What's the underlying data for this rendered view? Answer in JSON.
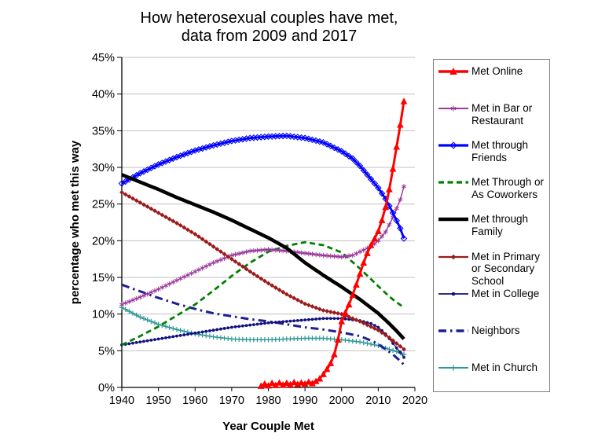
{
  "title": {
    "line1": "How heterosexual couples have met,",
    "line2": "data from 2009 and 2017"
  },
  "chart_data": {
    "type": "line",
    "title": "How heterosexual couples have met, data from 2009 and 2017",
    "xlabel": "Year Couple Met",
    "ylabel": "percentage who met this way",
    "xlim": [
      1940,
      2020
    ],
    "ylim": [
      0,
      45
    ],
    "x_ticks": [
      1940,
      1950,
      1960,
      1970,
      1980,
      1990,
      2000,
      2010,
      2020
    ],
    "y_ticks": [
      0,
      5,
      10,
      15,
      20,
      25,
      30,
      35,
      40,
      45
    ],
    "y_tick_labels": [
      "0%",
      "5%",
      "10%",
      "15%",
      "20%",
      "25%",
      "30%",
      "35%",
      "40%",
      "45%"
    ],
    "grid": "horizontal-only",
    "grid_color": "#C0C0C0",
    "axis_color": "#000000",
    "legend_position": "right",
    "draw_order": [
      "met-in-church",
      "neighbors",
      "met-in-college",
      "met-through-or-as-coworkers",
      "met-in-bar-or-restaurant",
      "met-in-primary-or-secondary-school",
      "met-through-friends",
      "met-through-family",
      "met-online"
    ],
    "series": [
      {
        "key": "met-online",
        "name": "Met Online",
        "color": "#FF0000",
        "line_width": 3,
        "dash": null,
        "marker": "triangle",
        "marker_size": 4.6,
        "points": [
          [
            1978,
            0.2
          ],
          [
            1979,
            0.5
          ],
          [
            1980,
            0.25
          ],
          [
            1981,
            0.6
          ],
          [
            1982,
            0.3
          ],
          [
            1983,
            0.65
          ],
          [
            1984,
            0.35
          ],
          [
            1985,
            0.6
          ],
          [
            1986,
            0.4
          ],
          [
            1987,
            0.7
          ],
          [
            1988,
            0.45
          ],
          [
            1989,
            0.65
          ],
          [
            1990,
            0.5
          ],
          [
            1991,
            0.75
          ],
          [
            1992,
            0.55
          ],
          [
            1993,
            0.85
          ],
          [
            1994,
            1.2
          ],
          [
            1995,
            1.8
          ],
          [
            1996,
            2.5
          ],
          [
            1997,
            3.3
          ],
          [
            1998,
            4.5
          ],
          [
            1999,
            6.5
          ],
          [
            2000,
            9
          ],
          [
            2001,
            10.2
          ],
          [
            2002,
            11.3
          ],
          [
            2003,
            12.6
          ],
          [
            2004,
            14
          ],
          [
            2005,
            15.5
          ],
          [
            2006,
            17
          ],
          [
            2007,
            18.3
          ],
          [
            2008,
            19.4
          ],
          [
            2009,
            20.3
          ],
          [
            2010,
            21.3
          ],
          [
            2011,
            22.8
          ],
          [
            2012,
            24.6
          ],
          [
            2013,
            27
          ],
          [
            2014,
            29.8
          ],
          [
            2015,
            32.8
          ],
          [
            2016,
            35.8
          ],
          [
            2017,
            39
          ]
        ]
      },
      {
        "key": "met-in-bar-or-restaurant",
        "name": "Met in Bar or Restaurant",
        "color": "#9B3A9B",
        "line_width": 1.5,
        "dash": null,
        "marker": "asterisk",
        "marker_size": 3.2,
        "points": [
          [
            1940,
            11.3
          ],
          [
            1945,
            12.3
          ],
          [
            1950,
            13.4
          ],
          [
            1955,
            14.6
          ],
          [
            1960,
            15.8
          ],
          [
            1965,
            17
          ],
          [
            1970,
            18
          ],
          [
            1975,
            18.6
          ],
          [
            1980,
            18.8
          ],
          [
            1985,
            18.6
          ],
          [
            1990,
            18.3
          ],
          [
            1995,
            18
          ],
          [
            2000,
            17.8
          ],
          [
            2003,
            18
          ],
          [
            2005,
            18.5
          ],
          [
            2008,
            19.2
          ],
          [
            2010,
            20
          ],
          [
            2012,
            21.2
          ],
          [
            2014,
            23.2
          ],
          [
            2016,
            25.6
          ],
          [
            2017,
            27.4
          ]
        ]
      },
      {
        "key": "met-through-friends",
        "name": "Met through Friends",
        "color": "#0000FF",
        "line_width": 2.8,
        "dash": null,
        "marker": "diamond-open",
        "marker_size": 3.5,
        "points": [
          [
            1940,
            27.8
          ],
          [
            1945,
            29.2
          ],
          [
            1950,
            30.4
          ],
          [
            1955,
            31.4
          ],
          [
            1960,
            32.3
          ],
          [
            1965,
            33
          ],
          [
            1970,
            33.6
          ],
          [
            1975,
            34
          ],
          [
            1980,
            34.2
          ],
          [
            1985,
            34.3
          ],
          [
            1990,
            34
          ],
          [
            1995,
            33.4
          ],
          [
            2000,
            32.2
          ],
          [
            2003,
            31.2
          ],
          [
            2005,
            30.2
          ],
          [
            2008,
            28.4
          ],
          [
            2010,
            27.2
          ],
          [
            2012,
            25.7
          ],
          [
            2014,
            23.8
          ],
          [
            2016,
            21.7
          ],
          [
            2017,
            20.3
          ]
        ]
      },
      {
        "key": "met-through-or-as-coworkers",
        "name": "Met Through or As Coworkers",
        "color": "#008000",
        "line_width": 2.8,
        "dash": "7,4.5",
        "marker": null,
        "marker_size": 0,
        "points": [
          [
            1940,
            5.8
          ],
          [
            1945,
            7
          ],
          [
            1950,
            8.3
          ],
          [
            1955,
            9.8
          ],
          [
            1960,
            11.3
          ],
          [
            1965,
            13.2
          ],
          [
            1970,
            15.2
          ],
          [
            1975,
            17
          ],
          [
            1980,
            18.5
          ],
          [
            1985,
            19.3
          ],
          [
            1990,
            19.8
          ],
          [
            1995,
            19.4
          ],
          [
            2000,
            18.4
          ],
          [
            2005,
            16.2
          ],
          [
            2010,
            13.8
          ],
          [
            2013,
            12.4
          ],
          [
            2015,
            11.6
          ],
          [
            2017,
            10.9
          ]
        ]
      },
      {
        "key": "met-through-family",
        "name": "Met through Family",
        "color": "#000000",
        "line_width": 4.5,
        "dash": null,
        "marker": null,
        "marker_size": 0,
        "points": [
          [
            1940,
            29
          ],
          [
            1945,
            28
          ],
          [
            1950,
            27
          ],
          [
            1955,
            25.9
          ],
          [
            1960,
            24.9
          ],
          [
            1965,
            23.9
          ],
          [
            1970,
            22.8
          ],
          [
            1975,
            21.6
          ],
          [
            1980,
            20.4
          ],
          [
            1985,
            19
          ],
          [
            1990,
            17
          ],
          [
            1995,
            15.3
          ],
          [
            2000,
            13.7
          ],
          [
            2005,
            12
          ],
          [
            2010,
            10.1
          ],
          [
            2013,
            8.7
          ],
          [
            2015,
            7.7
          ],
          [
            2017,
            6.6
          ]
        ]
      },
      {
        "key": "met-in-primary-or-secondary-school",
        "name": "Met in Primary or Secondary School",
        "color": "#9B1B1B",
        "line_width": 1.8,
        "dash": null,
        "marker": "diamond",
        "marker_size": 2.9,
        "points": [
          [
            1940,
            26.6
          ],
          [
            1945,
            25.2
          ],
          [
            1950,
            23.8
          ],
          [
            1955,
            22.4
          ],
          [
            1960,
            20.9
          ],
          [
            1965,
            19.2
          ],
          [
            1970,
            17.5
          ],
          [
            1975,
            15.8
          ],
          [
            1980,
            14.2
          ],
          [
            1985,
            12.7
          ],
          [
            1990,
            11.4
          ],
          [
            1995,
            10.5
          ],
          [
            2000,
            10
          ],
          [
            2005,
            9
          ],
          [
            2010,
            7.8
          ],
          [
            2013,
            6.8
          ],
          [
            2015,
            6
          ],
          [
            2017,
            5.2
          ]
        ]
      },
      {
        "key": "met-in-college",
        "name": "Met in College",
        "color": "#10107E",
        "line_width": 1.3,
        "dash": null,
        "marker": "dot",
        "marker_size": 1.9,
        "points": [
          [
            1940,
            5.8
          ],
          [
            1945,
            6.2
          ],
          [
            1950,
            6.6
          ],
          [
            1955,
            7
          ],
          [
            1960,
            7.4
          ],
          [
            1965,
            7.8
          ],
          [
            1970,
            8.2
          ],
          [
            1975,
            8.5
          ],
          [
            1980,
            8.8
          ],
          [
            1985,
            9
          ],
          [
            1990,
            9.2
          ],
          [
            1995,
            9.4
          ],
          [
            2000,
            9.4
          ],
          [
            2005,
            9.1
          ],
          [
            2008,
            8.7
          ],
          [
            2010,
            8.2
          ],
          [
            2012,
            7.3
          ],
          [
            2014,
            6
          ],
          [
            2016,
            4.8
          ],
          [
            2017,
            4.1
          ]
        ]
      },
      {
        "key": "neighbors",
        "name": "Neighbors",
        "color": "#1D1D96",
        "line_width": 3,
        "dash": "10,5,2.5,5",
        "marker": null,
        "marker_size": 0,
        "points": [
          [
            1940,
            14
          ],
          [
            1945,
            13.1
          ],
          [
            1950,
            12.2
          ],
          [
            1955,
            11.4
          ],
          [
            1960,
            10.7
          ],
          [
            1965,
            10.1
          ],
          [
            1970,
            9.7
          ],
          [
            1975,
            9.3
          ],
          [
            1980,
            9
          ],
          [
            1985,
            8.6
          ],
          [
            1990,
            8.2
          ],
          [
            1995,
            7.9
          ],
          [
            2000,
            7.5
          ],
          [
            2005,
            7
          ],
          [
            2008,
            6.4
          ],
          [
            2010,
            5.9
          ],
          [
            2012,
            5.2
          ],
          [
            2014,
            4.5
          ],
          [
            2016,
            3.6
          ],
          [
            2017,
            3.1
          ]
        ]
      },
      {
        "key": "met-in-church",
        "name": "Met in Church",
        "color": "#2E9898",
        "line_width": 1.4,
        "dash": null,
        "marker": "plus",
        "marker_size": 3.2,
        "points": [
          [
            1940,
            10.9
          ],
          [
            1945,
            9.6
          ],
          [
            1950,
            8.6
          ],
          [
            1955,
            7.9
          ],
          [
            1960,
            7.3
          ],
          [
            1965,
            6.9
          ],
          [
            1970,
            6.6
          ],
          [
            1975,
            6.5
          ],
          [
            1980,
            6.5
          ],
          [
            1985,
            6.6
          ],
          [
            1990,
            6.7
          ],
          [
            1995,
            6.7
          ],
          [
            2000,
            6.5
          ],
          [
            2005,
            6.2
          ],
          [
            2010,
            5.7
          ],
          [
            2013,
            5.2
          ],
          [
            2015,
            4.9
          ],
          [
            2017,
            4.5
          ]
        ]
      }
    ]
  }
}
